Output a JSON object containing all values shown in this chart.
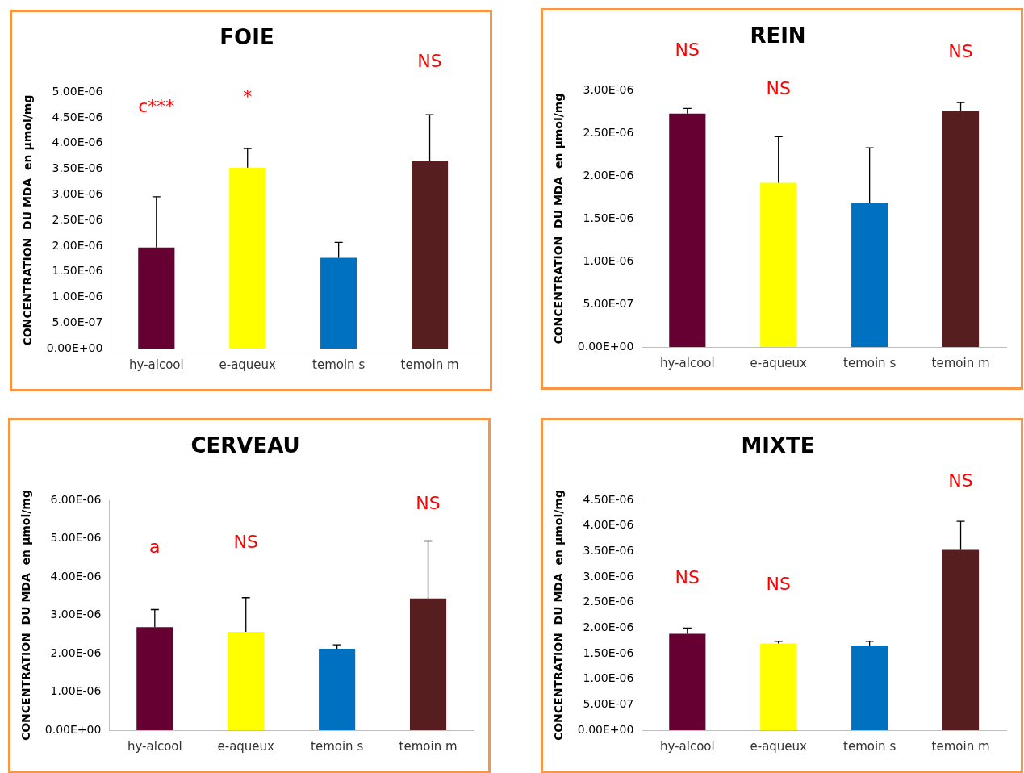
{
  "chart_data": [
    {
      "type": "bar",
      "title": "FOIE",
      "ylabel": "CONCENTRATION  DU MDA  en µmol/mg",
      "categories": [
        "hy-alcool",
        "e-aqueux",
        "temoin s",
        "temoin m"
      ],
      "values": [
        1.97e-06,
        3.53e-06,
        1.77e-06,
        3.66e-06
      ],
      "colors": [
        "#660033",
        "#ffff00",
        "#0070c0",
        "#561e1e"
      ],
      "errors": [
        [
          1.97e-06,
          2.96e-06
        ],
        [
          3.53e-06,
          3.9e-06
        ],
        [
          1.77e-06,
          2.07e-06
        ],
        [
          3.66e-06,
          4.56e-06
        ]
      ],
      "ylim": [
        0,
        5e-06
      ],
      "yticks": [
        {
          "value": 0,
          "label": "0.00E+00"
        },
        {
          "value": 5e-07,
          "label": "5.00E-07"
        },
        {
          "value": 1e-06,
          "label": "1.00E-06"
        },
        {
          "value": 1.5e-06,
          "label": "1.50E-06"
        },
        {
          "value": 2e-06,
          "label": "2.00E-06"
        },
        {
          "value": 2.5e-06,
          "label": "2.50E-06"
        },
        {
          "value": 3e-06,
          "label": "3.00E-06"
        },
        {
          "value": 3.5e-06,
          "label": "3.50E-06"
        },
        {
          "value": 4e-06,
          "label": "4.00E-06"
        },
        {
          "value": 4.5e-06,
          "label": "4.50E-06"
        },
        {
          "value": 5e-06,
          "label": "5.00E-06"
        }
      ],
      "annotations": [
        "c***",
        "*",
        "NS"
      ],
      "grid": false,
      "legend": false
    },
    {
      "type": "bar",
      "title": "REIN",
      "ylabel": "CONCENTRATION  DU MDA  en µmol/mg",
      "categories": [
        "hy-alcool",
        "e-aqueux",
        "temoin s",
        "temoin m"
      ],
      "values": [
        2.73e-06,
        1.92e-06,
        1.69e-06,
        2.76e-06
      ],
      "colors": [
        "#660033",
        "#ffff00",
        "#0070c0",
        "#561e1e"
      ],
      "errors": [
        [
          2.73e-06,
          2.79e-06
        ],
        [
          1.92e-06,
          2.46e-06
        ],
        [
          1.69e-06,
          2.33e-06
        ],
        [
          2.76e-06,
          2.86e-06
        ]
      ],
      "ylim": [
        0,
        3e-06
      ],
      "yticks": [
        {
          "value": 0,
          "label": "0.00E+00"
        },
        {
          "value": 5e-07,
          "label": "5.00E-07"
        },
        {
          "value": 1e-06,
          "label": "1.00E-06"
        },
        {
          "value": 1.5e-06,
          "label": "1.50E-06"
        },
        {
          "value": 2e-06,
          "label": "2.00E-06"
        },
        {
          "value": 2.5e-06,
          "label": "2.50E-06"
        },
        {
          "value": 3e-06,
          "label": "3.00E-06"
        }
      ],
      "annotations": [
        "NS",
        "NS",
        "NS"
      ],
      "grid": false,
      "legend": false
    },
    {
      "type": "bar",
      "title": "CERVEAU",
      "ylabel": "CONCENTRATION  DU MDA  en µmol/mg",
      "categories": [
        "hy-alcool",
        "e-aqueux",
        "temoin s",
        "temoin m"
      ],
      "values": [
        2.69e-06,
        2.57e-06,
        2.13e-06,
        3.44e-06
      ],
      "colors": [
        "#660033",
        "#ffff00",
        "#0070c0",
        "#561e1e"
      ],
      "errors": [
        [
          2.69e-06,
          3.15e-06
        ],
        [
          2.57e-06,
          3.46e-06
        ],
        [
          2.13e-06,
          2.23e-06
        ],
        [
          3.44e-06,
          4.94e-06
        ]
      ],
      "ylim": [
        0,
        6e-06
      ],
      "yticks": [
        {
          "value": 0,
          "label": "0.00E+00"
        },
        {
          "value": 1e-06,
          "label": "1.00E-06"
        },
        {
          "value": 2e-06,
          "label": "2.00E-06"
        },
        {
          "value": 3e-06,
          "label": "3.00E-06"
        },
        {
          "value": 4e-06,
          "label": "4.00E-06"
        },
        {
          "value": 5e-06,
          "label": "5.00E-06"
        },
        {
          "value": 6e-06,
          "label": "6.00E-06"
        }
      ],
      "annotations": [
        "a",
        "NS",
        "NS"
      ],
      "grid": false,
      "legend": false
    },
    {
      "type": "bar",
      "title": "MIXTE",
      "ylabel": "CONCENTRATION  DU MDA  en µmol/mg",
      "categories": [
        "hy-alcool",
        "e-aqueux",
        "temoin s",
        "temoin m"
      ],
      "values": [
        1.89e-06,
        1.7e-06,
        1.66e-06,
        3.53e-06
      ],
      "colors": [
        "#660033",
        "#ffff00",
        "#0070c0",
        "#561e1e"
      ],
      "errors": [
        [
          1.89e-06,
          2e-06
        ],
        [
          1.7e-06,
          1.74e-06
        ],
        [
          1.66e-06,
          1.74e-06
        ],
        [
          3.53e-06,
          4.09e-06
        ]
      ],
      "ylim": [
        0,
        4.5e-06
      ],
      "yticks": [
        {
          "value": 0,
          "label": "0.00E+00"
        },
        {
          "value": 5e-07,
          "label": "5.00E-07"
        },
        {
          "value": 1e-06,
          "label": "1.00E-06"
        },
        {
          "value": 1.5e-06,
          "label": "1.50E-06"
        },
        {
          "value": 2e-06,
          "label": "2.00E-06"
        },
        {
          "value": 2.5e-06,
          "label": "2.50E-06"
        },
        {
          "value": 3e-06,
          "label": "3.00E-06"
        },
        {
          "value": 3.5e-06,
          "label": "3.50E-06"
        },
        {
          "value": 4e-06,
          "label": "4.00E-06"
        },
        {
          "value": 4.5e-06,
          "label": "4.50E-06"
        }
      ],
      "annotations": [
        "NS",
        "NS",
        "NS"
      ],
      "grid": false,
      "legend": false
    }
  ]
}
